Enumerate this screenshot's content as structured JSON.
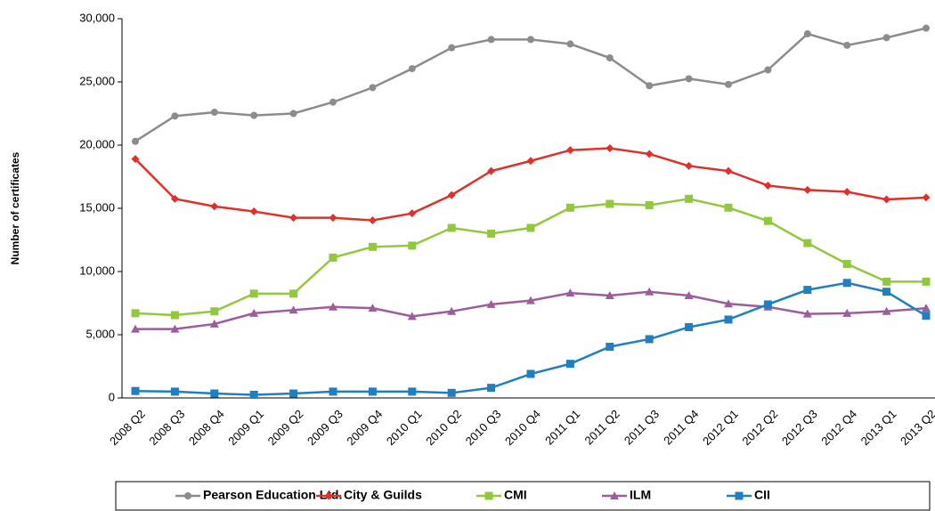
{
  "chart_data": {
    "type": "line",
    "y_label": "Number of certificates",
    "categories": [
      "2008 Q2",
      "2008 Q3",
      "2008 Q4",
      "2009 Q1",
      "2009 Q2",
      "2009 Q3",
      "2009 Q4",
      "2010 Q1",
      "2010 Q2",
      "2010 Q3",
      "2010 Q4",
      "2011 Q1",
      "2011 Q2",
      "2011 Q3",
      "2011 Q4",
      "2012 Q1",
      "2012 Q2",
      "2012 Q3",
      "2012 Q4",
      "2013 Q1",
      "2013 Q2"
    ],
    "ylim": [
      0,
      30000
    ],
    "yticks": [
      0,
      {
        "value": 5000,
        "label": "5,000"
      },
      {
        "value": 10000,
        "label": "10,000"
      },
      {
        "value": 15000,
        "label": "15,000"
      },
      {
        "value": 20000,
        "label": "20,000"
      },
      {
        "value": 25000,
        "label": "25,000"
      },
      {
        "value": 30000,
        "label": "30,000"
      }
    ],
    "grid": false,
    "legend": "bottom",
    "series": [
      {
        "name": "Pearson Education Ltd.",
        "color": "#8c8c8c",
        "marker": "circle",
        "values": [
          20300,
          22300,
          22600,
          22350,
          22500,
          23400,
          24550,
          26050,
          27700,
          28350,
          28350,
          28000,
          26900,
          24700,
          25250,
          24800,
          25950,
          28800,
          27900,
          28500,
          29250
        ]
      },
      {
        "name": "City & Guilds",
        "color": "#e0302a",
        "marker": "diamond",
        "values": [
          18900,
          15750,
          15150,
          14750,
          14250,
          14250,
          14050,
          14600,
          16050,
          17950,
          18750,
          19600,
          19750,
          19300,
          18350,
          17950,
          16800,
          16450,
          16300,
          15700,
          15850
        ]
      },
      {
        "name": "CMI",
        "color": "#92c83e",
        "marker": "square",
        "values": [
          6700,
          6550,
          6850,
          8250,
          8250,
          11100,
          11950,
          12050,
          13450,
          13000,
          13450,
          15050,
          15350,
          15250,
          15750,
          15050,
          14000,
          12250,
          10600,
          9200,
          9200
        ]
      },
      {
        "name": "ILM",
        "color": "#9b5d9b",
        "marker": "triangle",
        "values": [
          5450,
          5450,
          5850,
          6700,
          6950,
          7200,
          7100,
          6450,
          6850,
          7400,
          7700,
          8300,
          8100,
          8400,
          8100,
          7450,
          7200,
          6650,
          6700,
          6850,
          7100
        ]
      },
      {
        "name": "CII",
        "color": "#1f7fc0",
        "marker": "square",
        "values": [
          550,
          500,
          350,
          250,
          350,
          500,
          500,
          500,
          400,
          800,
          1900,
          2700,
          4050,
          4650,
          5600,
          6200,
          7400,
          8550,
          9100,
          8400,
          6500
        ]
      }
    ]
  }
}
